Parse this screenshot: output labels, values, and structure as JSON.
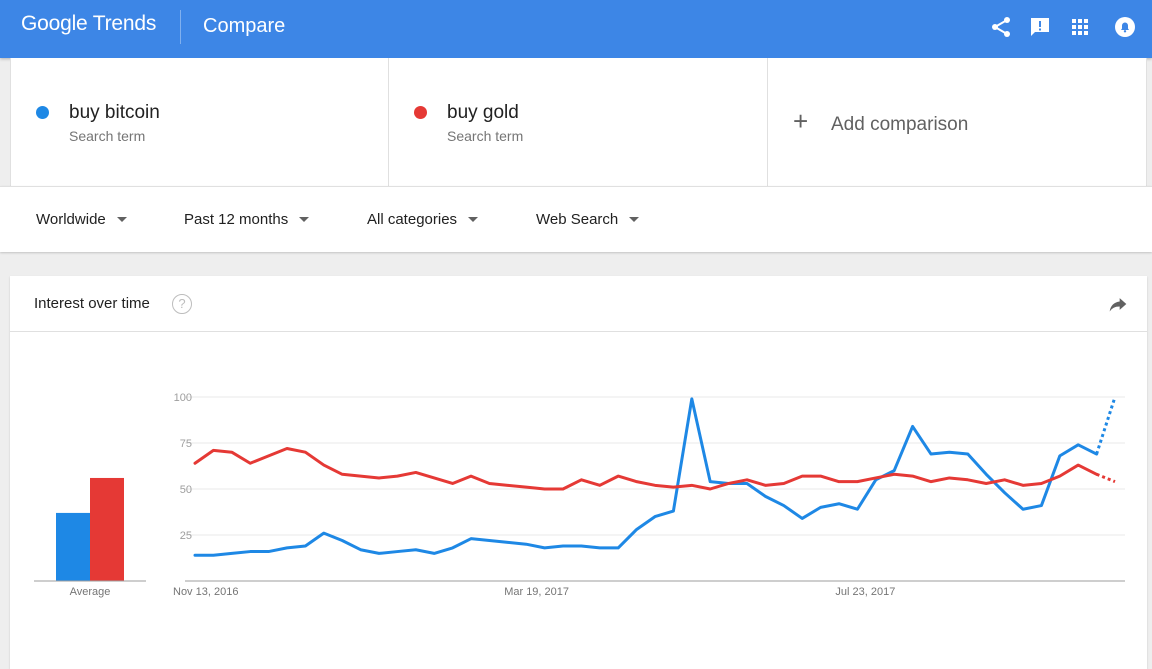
{
  "header": {
    "logo_text": "Google Trends",
    "page_title": "Compare",
    "icons": [
      "share-icon",
      "feedback-icon",
      "apps-grid-icon",
      "notifications-icon"
    ]
  },
  "terms": [
    {
      "label": "buy bitcoin",
      "sublabel": "Search term",
      "color": "#1e88e5"
    },
    {
      "label": "buy gold",
      "sublabel": "Search term",
      "color": "#e53935"
    }
  ],
  "add_comparison": {
    "icon": "+",
    "label": "Add comparison"
  },
  "filters": [
    {
      "label": "Worldwide"
    },
    {
      "label": "Past 12 months"
    },
    {
      "label": "All categories"
    },
    {
      "label": "Web Search"
    }
  ],
  "card": {
    "title": "Interest over time",
    "help_icon": "?"
  },
  "chart_data": {
    "type": "line",
    "y_ticks": [
      25,
      50,
      75,
      100
    ],
    "ylim": [
      0,
      100
    ],
    "x_tick_labels": [
      {
        "index": 0,
        "label": "Nov 13, 2016"
      },
      {
        "index": 18,
        "label": "Mar 19, 2017"
      },
      {
        "index": 36,
        "label": "Jul 23, 2017"
      }
    ],
    "average_label": "Average",
    "averages": [
      37,
      56
    ],
    "partial_from_index": 49,
    "series": [
      {
        "name": "buy bitcoin",
        "color": "#1e88e5",
        "values": [
          14,
          14,
          15,
          16,
          16,
          18,
          19,
          26,
          22,
          17,
          15,
          16,
          17,
          15,
          18,
          23,
          22,
          21,
          20,
          18,
          19,
          19,
          18,
          18,
          28,
          35,
          38,
          99,
          54,
          53,
          53,
          46,
          41,
          34,
          40,
          42,
          39,
          55,
          60,
          84,
          69,
          70,
          69,
          58,
          48,
          39,
          41,
          68,
          74,
          69,
          100
        ]
      },
      {
        "name": "buy gold",
        "color": "#e53935",
        "values": [
          64,
          71,
          70,
          64,
          68,
          72,
          70,
          63,
          58,
          57,
          56,
          57,
          59,
          56,
          53,
          57,
          53,
          52,
          51,
          50,
          50,
          55,
          52,
          57,
          54,
          52,
          51,
          52,
          50,
          53,
          55,
          52,
          53,
          57,
          57,
          54,
          54,
          56,
          58,
          57,
          54,
          56,
          55,
          53,
          55,
          52,
          53,
          57,
          63,
          58,
          54
        ]
      }
    ]
  }
}
